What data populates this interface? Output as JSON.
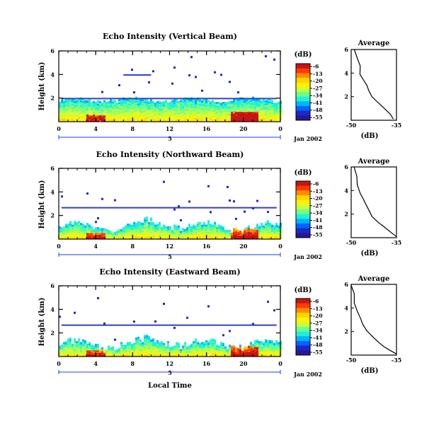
{
  "panels": [
    {
      "title": "Echo Intensity (Vertical Beam)",
      "xlabel": "",
      "date_label": "Jan 2002",
      "beam": "vertical"
    },
    {
      "title": "Echo Intensity (Northward Beam)",
      "xlabel": "",
      "date_label": "Jan 2002",
      "beam": "northward"
    },
    {
      "title": "Echo Intensity (Eastward Beam)",
      "xlabel": "Local Time",
      "date_label": "Jan 2002",
      "beam": "eastward"
    }
  ],
  "ylabel": "Height (km)",
  "date_day": "5",
  "colorbar": {
    "unit": "(dB)",
    "ticks": [
      "-6",
      "-13",
      "-20",
      "-27",
      "-34",
      "-41",
      "-48",
      "-55"
    ],
    "colors": [
      "#c81414",
      "#ff3a00",
      "#ff8c00",
      "#ffd200",
      "#fff200",
      "#c8ff3c",
      "#6cff8c",
      "#20f0d8",
      "#00b4ff",
      "#0064ff",
      "#1e28c8",
      "#281890"
    ]
  },
  "average": {
    "title": "Average",
    "xlabel": "(dB)",
    "xticks": [
      "-50",
      "-35"
    ],
    "xticks_row3": [
      "-50",
      "-35"
    ],
    "yticks": [
      "6",
      "4",
      "2"
    ]
  },
  "chart_data": [
    {
      "type": "heatmap",
      "title": "Echo Intensity (Vertical Beam)",
      "xlabel": "",
      "ylabel": "Height (km)",
      "x_ticks": [
        "0",
        "4",
        "8",
        "12",
        "16",
        "20",
        "0"
      ],
      "y_ticks": [
        "6",
        "4",
        "2"
      ],
      "xlim": [
        0,
        24
      ],
      "ylim": [
        0,
        6
      ],
      "units": "dB",
      "clim": [
        -55,
        -6
      ]
    },
    {
      "type": "heatmap",
      "title": "Echo Intensity (Northward Beam)",
      "xlabel": "",
      "ylabel": "Height (km)",
      "x_ticks": [
        "0",
        "4",
        "8",
        "12",
        "16",
        "20",
        "0"
      ],
      "y_ticks": [
        "6",
        "4",
        "2"
      ],
      "xlim": [
        0,
        24
      ],
      "ylim": [
        0,
        6
      ],
      "units": "dB",
      "clim": [
        -55,
        -6
      ]
    },
    {
      "type": "heatmap",
      "title": "Echo Intensity (Eastward Beam)",
      "xlabel": "Local Time",
      "ylabel": "Height (km)",
      "x_ticks": [
        "0",
        "4",
        "8",
        "12",
        "16",
        "20",
        "0"
      ],
      "y_ticks": [
        "6",
        "4",
        "2"
      ],
      "xlim": [
        0,
        24
      ],
      "ylim": [
        0,
        6
      ],
      "units": "dB",
      "clim": [
        -55,
        -6
      ]
    },
    {
      "type": "line",
      "title": "Average",
      "xlabel": "(dB)",
      "x": [
        -49,
        -48,
        -47,
        -47,
        -46,
        -45,
        -44,
        -43,
        -41,
        -39,
        -37,
        -36
      ],
      "y": [
        6.0,
        5.2,
        4.6,
        3.9,
        3.4,
        3.0,
        2.5,
        2.0,
        1.5,
        1.0,
        0.5,
        0.1
      ],
      "xlim": [
        -50,
        -35
      ],
      "ylim": [
        0,
        6
      ]
    },
    {
      "type": "line",
      "title": "Average",
      "xlabel": "(dB)",
      "x": [
        -49,
        -48,
        -48,
        -47,
        -46,
        -45,
        -44,
        -43,
        -41,
        -39,
        -37,
        -35
      ],
      "y": [
        6.0,
        5.2,
        4.5,
        3.8,
        3.3,
        2.8,
        2.3,
        1.8,
        1.3,
        0.9,
        0.5,
        0.1
      ],
      "xlim": [
        -50,
        -35
      ],
      "ylim": [
        0,
        6
      ]
    },
    {
      "type": "line",
      "title": "Average",
      "xlabel": "(dB)",
      "x": [
        -50,
        -49,
        -49,
        -48,
        -47,
        -46,
        -45,
        -43,
        -41,
        -39,
        -37,
        -35
      ],
      "y": [
        6.0,
        5.2,
        4.4,
        3.7,
        3.1,
        2.6,
        2.1,
        1.6,
        1.1,
        0.7,
        0.4,
        0.1
      ],
      "xlim": [
        -50,
        -35
      ],
      "ylim": [
        0,
        6
      ]
    }
  ]
}
